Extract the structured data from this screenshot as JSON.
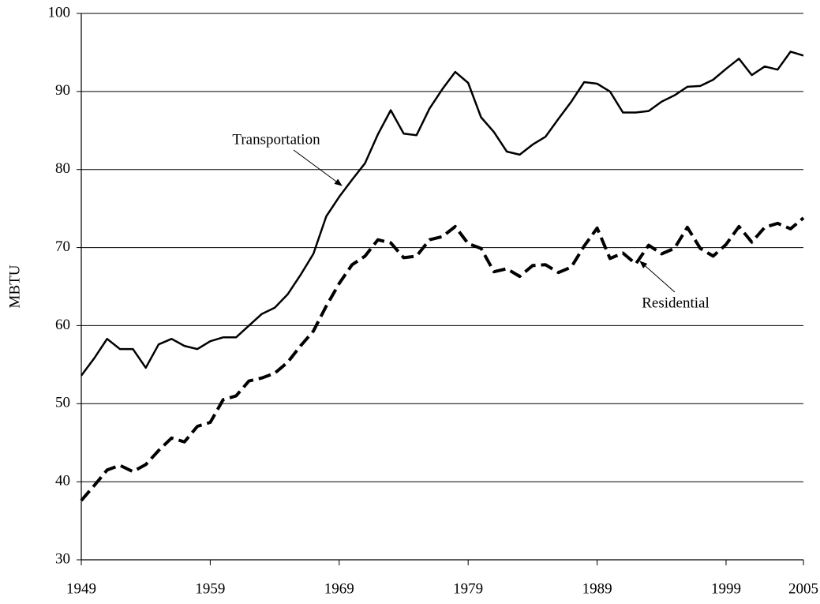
{
  "chart_data": {
    "type": "line",
    "ylabel": "MBTU",
    "x": [
      1949,
      1950,
      1951,
      1952,
      1953,
      1954,
      1955,
      1956,
      1957,
      1958,
      1959,
      1960,
      1961,
      1962,
      1963,
      1964,
      1965,
      1966,
      1967,
      1968,
      1969,
      1970,
      1971,
      1972,
      1973,
      1974,
      1975,
      1976,
      1977,
      1978,
      1979,
      1980,
      1981,
      1982,
      1983,
      1984,
      1985,
      1986,
      1987,
      1988,
      1989,
      1990,
      1991,
      1992,
      1993,
      1994,
      1995,
      1996,
      1997,
      1998,
      1999,
      2000,
      2001,
      2002,
      2003,
      2004,
      2005
    ],
    "series": [
      {
        "name": "Transportation",
        "color": "#000000",
        "style": "solid",
        "values": [
          53.6,
          55.8,
          58.3,
          57.0,
          57.0,
          54.6,
          57.6,
          58.3,
          57.4,
          57.0,
          58.0,
          58.5,
          58.5,
          60.0,
          61.5,
          62.3,
          64.0,
          66.5,
          69.2,
          74.0,
          76.5,
          78.7,
          80.8,
          84.5,
          87.6,
          84.6,
          84.4,
          87.8,
          90.3,
          92.5,
          91.1,
          86.7,
          84.8,
          82.3,
          81.9,
          83.2,
          84.2,
          86.5,
          88.7,
          91.2,
          91.0,
          90.0,
          87.3,
          87.3,
          87.5,
          88.7,
          89.5,
          90.6,
          90.7,
          91.5,
          92.9,
          94.2,
          92.1,
          93.2,
          92.8,
          95.1,
          94.6
        ]
      },
      {
        "name": "Residential",
        "color": "#000000",
        "style": "dashed",
        "values": [
          37.6,
          39.5,
          41.5,
          42.1,
          41.3,
          42.2,
          44.0,
          45.6,
          45.1,
          47.1,
          47.6,
          50.5,
          51.0,
          52.9,
          53.3,
          53.9,
          55.3,
          57.4,
          59.3,
          62.5,
          65.4,
          67.8,
          68.9,
          71.0,
          70.6,
          68.7,
          68.9,
          71.0,
          71.4,
          72.7,
          70.5,
          69.9,
          66.9,
          67.3,
          66.3,
          67.7,
          67.8,
          66.8,
          67.5,
          70.2,
          72.5,
          68.6,
          69.3,
          67.9,
          70.3,
          69.2,
          69.9,
          72.6,
          69.9,
          68.9,
          70.4,
          72.7,
          70.7,
          72.6,
          73.1,
          72.4,
          73.8
        ]
      }
    ],
    "annotations": [
      {
        "text": "Transportation"
      },
      {
        "text": "Residential"
      }
    ],
    "xlim": [
      1949,
      2005
    ],
    "xticks": [
      1949,
      1959,
      1969,
      1979,
      1989,
      1999,
      2005
    ],
    "ylim": [
      30,
      100
    ],
    "yticks": [
      30,
      40,
      50,
      60,
      70,
      80,
      90,
      100
    ],
    "grid": true
  }
}
